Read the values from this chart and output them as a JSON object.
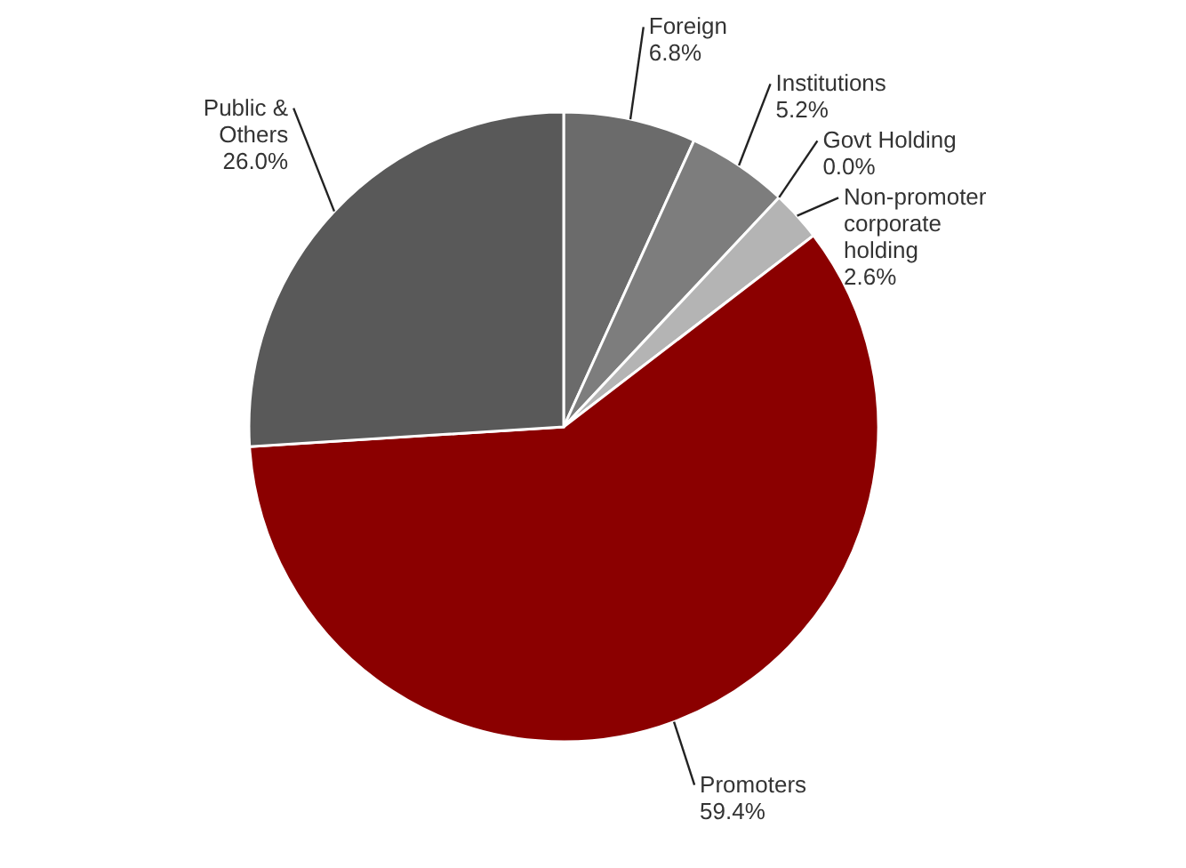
{
  "chart_data": {
    "type": "pie",
    "categories": [
      "Foreign",
      "Institutions",
      "Govt Holding",
      "Non-promoter corporate holding",
      "Promoters",
      "Public & Others"
    ],
    "values": [
      6.8,
      5.2,
      0.0,
      2.6,
      59.4,
      26.0
    ],
    "colors": [
      "#6b6b6b",
      "#7d7d7d",
      "#9a9a9a",
      "#b4b4b4",
      "#8b0000",
      "#595959"
    ],
    "value_labels": [
      "6.8%",
      "5.2%",
      "0.0%",
      "2.6%",
      "59.4%",
      "26.0%"
    ]
  }
}
